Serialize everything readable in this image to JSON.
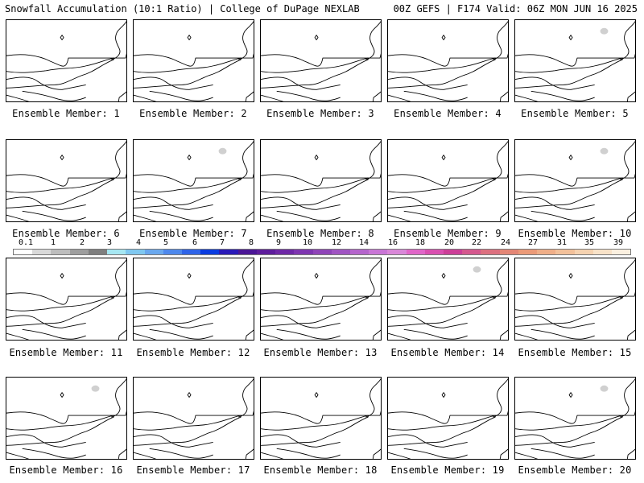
{
  "header": {
    "left": "Snowfall Accumulation (10:1 Ratio) | College of DuPage NEXLAB",
    "right": "00Z GEFS | F174 Valid: 06Z MON JUN 16 2025"
  },
  "panels": [
    {
      "label": "Ensemble Member: 1",
      "line_style": "bold",
      "snow_patch": false
    },
    {
      "label": "Ensemble Member: 2",
      "line_style": "bold",
      "snow_patch": false
    },
    {
      "label": "Ensemble Member: 3",
      "line_style": "bold",
      "snow_patch": false
    },
    {
      "label": "Ensemble Member: 4",
      "line_style": "bold",
      "snow_patch": false
    },
    {
      "label": "Ensemble Member: 5",
      "line_style": "light",
      "snow_patch": true
    },
    {
      "label": "Ensemble Member: 6",
      "line_style": "bold",
      "snow_patch": false
    },
    {
      "label": "Ensemble Member: 7",
      "line_style": "light",
      "snow_patch": true
    },
    {
      "label": "Ensemble Member: 8",
      "line_style": "bold",
      "snow_patch": false
    },
    {
      "label": "Ensemble Member: 9",
      "line_style": "bold",
      "snow_patch": false
    },
    {
      "label": "Ensemble Member: 10",
      "line_style": "light",
      "snow_patch": true
    },
    {
      "label": "Ensemble Member: 11",
      "line_style": "light",
      "snow_patch": false
    },
    {
      "label": "Ensemble Member: 12",
      "line_style": "bold",
      "snow_patch": false
    },
    {
      "label": "Ensemble Member: 13",
      "line_style": "light",
      "snow_patch": false
    },
    {
      "label": "Ensemble Member: 14",
      "line_style": "light",
      "snow_patch": true
    },
    {
      "label": "Ensemble Member: 15",
      "line_style": "bold",
      "snow_patch": false
    },
    {
      "label": "Ensemble Member: 16",
      "line_style": "light",
      "snow_patch": true
    },
    {
      "label": "Ensemble Member: 17",
      "line_style": "bold",
      "snow_patch": false
    },
    {
      "label": "Ensemble Member: 18",
      "line_style": "bold",
      "snow_patch": false
    },
    {
      "label": "Ensemble Member: 19",
      "line_style": "bold",
      "snow_patch": false
    },
    {
      "label": "Ensemble Member: 20",
      "line_style": "light",
      "snow_patch": true
    }
  ],
  "colorbar": {
    "ticks": [
      "0.1",
      "1",
      "2",
      "3",
      "4",
      "5",
      "6",
      "7",
      "8",
      "9",
      "10",
      "12",
      "14",
      "16",
      "18",
      "20",
      "22",
      "24",
      "27",
      "31",
      "35",
      "39"
    ],
    "colors": [
      "#ffffff",
      "#d9d9d9",
      "#bdbdbd",
      "#9e9e9e",
      "#7f7f7f",
      "#a6e7f2",
      "#80c8f0",
      "#6aa8ee",
      "#4e88ec",
      "#2f64e8",
      "#0a3ce0",
      "#2a1ab8",
      "#4b1696",
      "#5e1d9c",
      "#6e28a6",
      "#7e35b0",
      "#8f44b8",
      "#a054c2",
      "#b565cc",
      "#c976d6",
      "#d987d8",
      "#e066c8",
      "#d94fb0",
      "#cc3e98",
      "#d4588e",
      "#dc7080",
      "#e48676",
      "#eb9a78",
      "#efae88",
      "#f2c09a",
      "#f5d2b0",
      "#f8e2c8",
      "#fbf0e0"
    ]
  }
}
